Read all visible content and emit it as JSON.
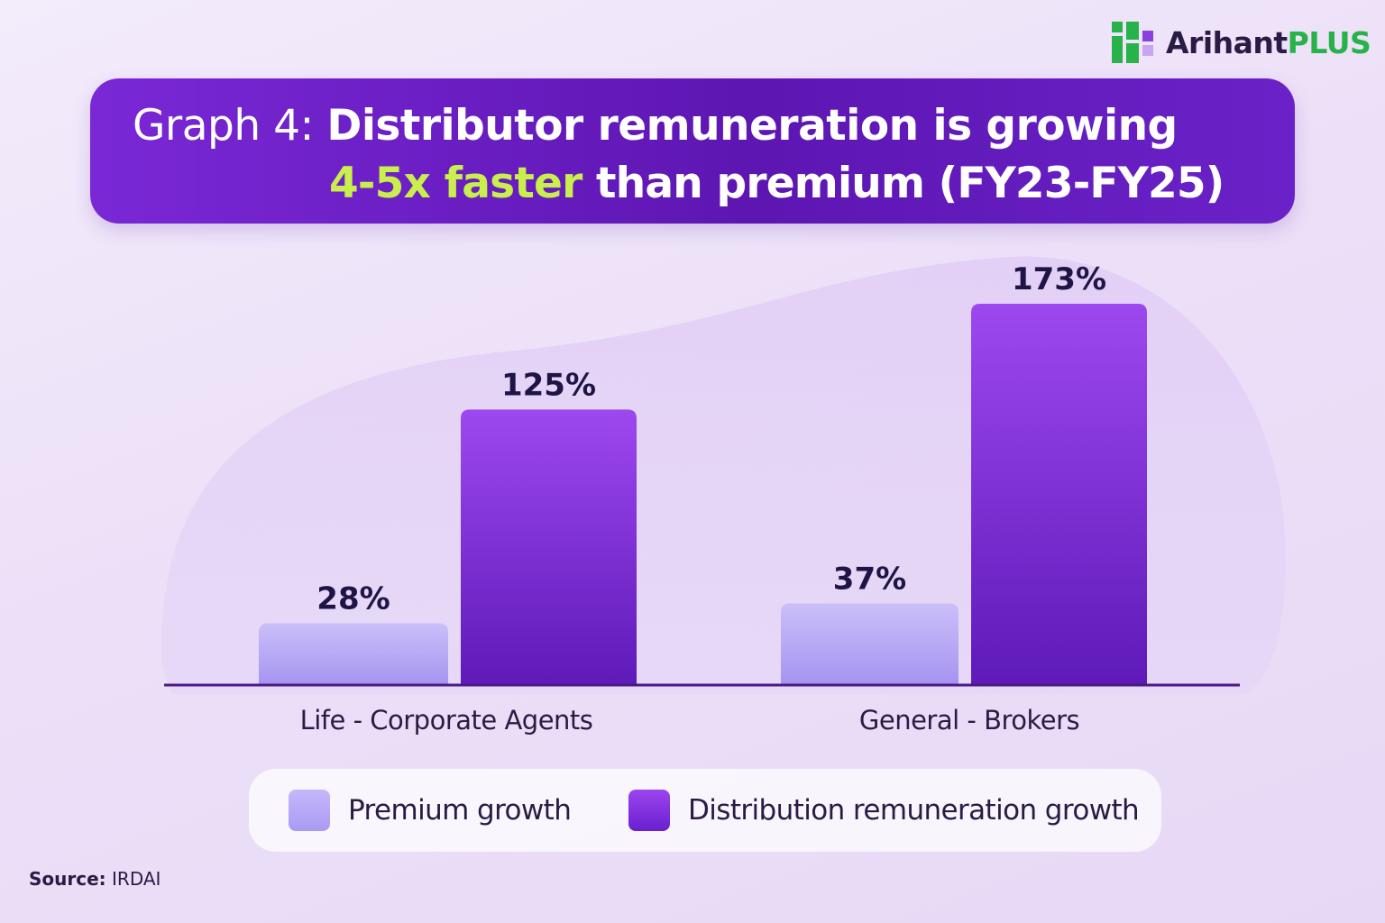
{
  "brand": {
    "name_part1": "Arihant",
    "name_part2": "PLUS",
    "accent_color": "#27b24a"
  },
  "title": {
    "prefix": "Graph 4:",
    "line1_bold": "Distributor remuneration is growing",
    "line2_highlight": "4-5x faster",
    "line2_rest": "than premium (FY23-FY25)",
    "highlight_color": "#c8ef4c"
  },
  "chart_data": {
    "type": "bar",
    "categories": [
      "Life - Corporate Agents",
      "General - Brokers"
    ],
    "series": [
      {
        "name": "Premium growth",
        "values": [
          28,
          37
        ],
        "labels": [
          "28%",
          "37%"
        ],
        "color": "#b0a2f5"
      },
      {
        "name": "Distribution remuneration growth",
        "values": [
          125,
          173
        ],
        "labels": [
          "125%",
          "173%"
        ],
        "color": "#7a2ddf"
      }
    ],
    "ylim": [
      0,
      173
    ],
    "grid": false,
    "legend": "bottom"
  },
  "source": {
    "label": "Source:",
    "value": "IRDAI"
  }
}
